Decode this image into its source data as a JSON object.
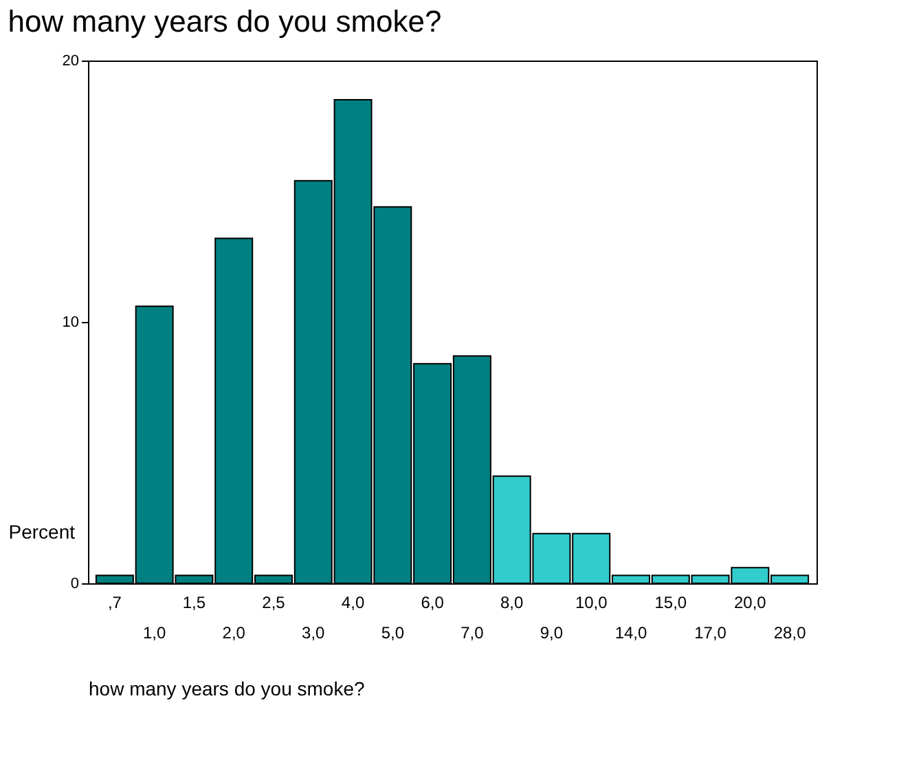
{
  "chart_data": {
    "type": "bar",
    "title": "how many years do you smoke?",
    "xlabel": "how many years do you smoke?",
    "ylabel": "Percent",
    "categories": [
      ",7",
      "1,0",
      "1,5",
      "2,0",
      "2,5",
      "3,0",
      "4,0",
      "5,0",
      "6,0",
      "7,0",
      "8,0",
      "9,0",
      "10,0",
      "14,0",
      "15,0",
      "17,0",
      "20,0",
      "28,0"
    ],
    "values": [
      0.3,
      10.6,
      0.3,
      13.2,
      0.3,
      15.4,
      18.5,
      14.4,
      8.4,
      8.7,
      4.1,
      1.9,
      1.9,
      0.3,
      0.3,
      0.3,
      0.6,
      0.3
    ],
    "colors": [
      "#008080",
      "#008080",
      "#008080",
      "#008080",
      "#008080",
      "#008080",
      "#008080",
      "#008080",
      "#008080",
      "#008080",
      "#33cccc",
      "#33cccc",
      "#33cccc",
      "#33cccc",
      "#33cccc",
      "#33cccc",
      "#33cccc",
      "#33cccc"
    ],
    "ylim": [
      0,
      20
    ],
    "yticks": [
      0,
      10,
      20
    ],
    "grid": false
  }
}
